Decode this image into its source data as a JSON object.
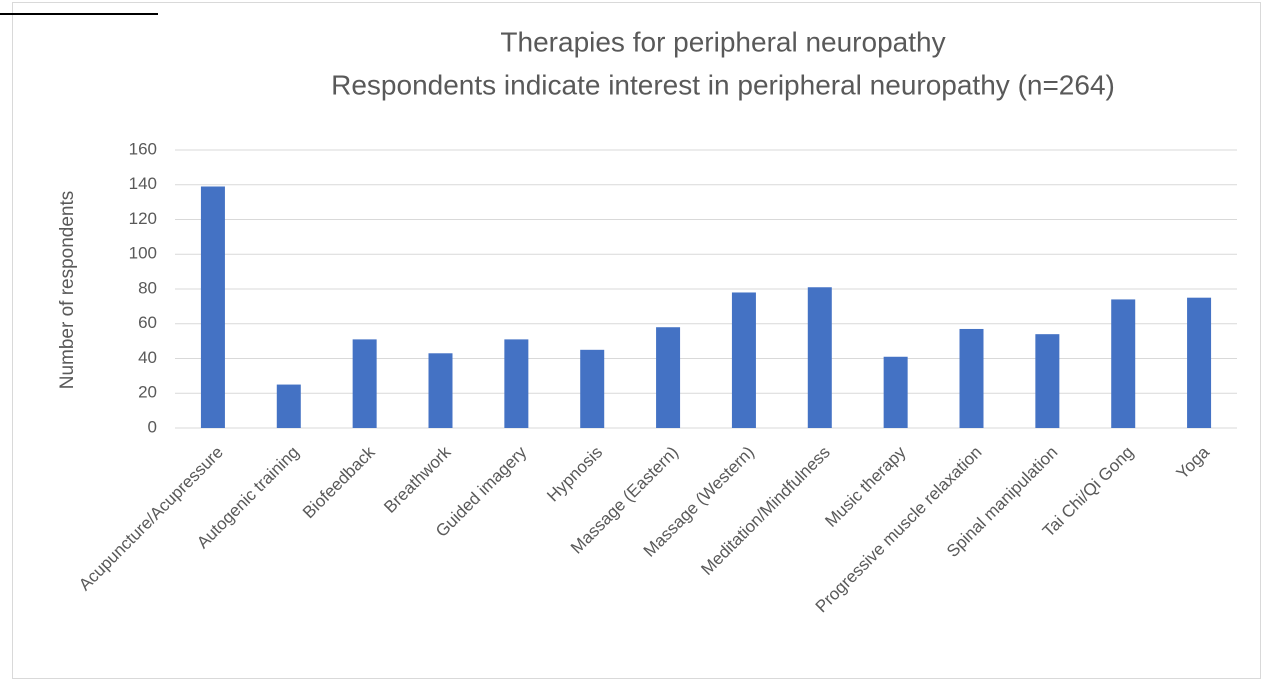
{
  "chart_data": {
    "type": "bar",
    "title": "Therapies for peripheral neuropathy",
    "subtitle": "Respondents indicate interest in peripheral neuropathy (n=264)",
    "y_label": "Number of respondents",
    "categories": [
      "Acupuncture/Acupressure",
      "Autogenic training",
      "Biofeedback",
      "Breathwork",
      "Guided imagery",
      "Hypnosis",
      "Massage (Eastern)",
      "Massage (Western)",
      "Meditation/Mindfulness",
      "Music therapy",
      "Progressive muscle relaxation",
      "Spinal manipulation",
      "Tai Chi/Qi Gong",
      "Yoga"
    ],
    "values": [
      139,
      25,
      51,
      43,
      51,
      45,
      58,
      78,
      81,
      41,
      57,
      54,
      74,
      75
    ],
    "color": "#4472c4",
    "ylim": [
      0,
      160
    ],
    "yticks": [
      0,
      20,
      40,
      60,
      80,
      100,
      120,
      140,
      160
    ],
    "grid": true
  }
}
